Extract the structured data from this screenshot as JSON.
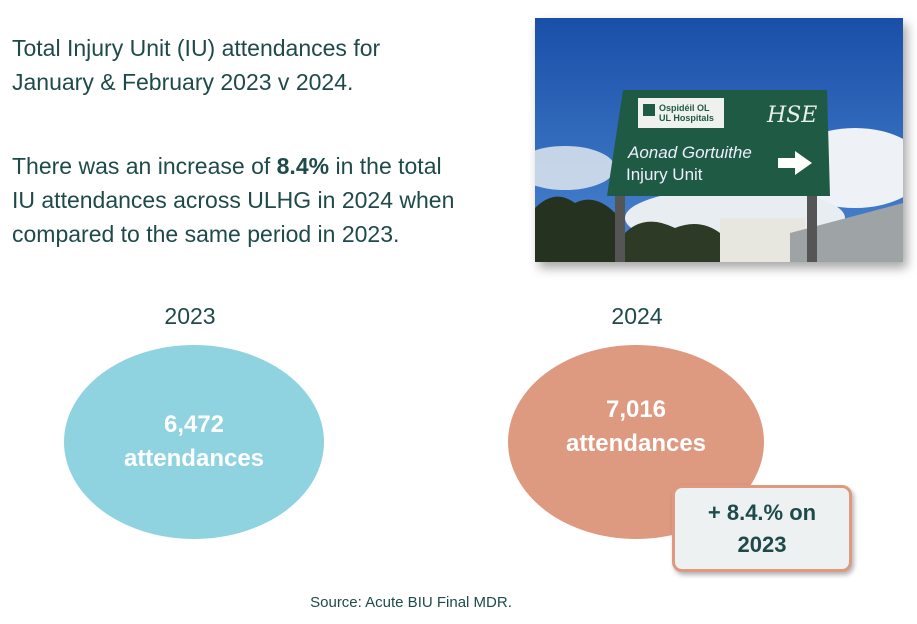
{
  "intro": {
    "line1": "Total Injury Unit (IU) attendances for",
    "line2": "January & February 2023 v 2024."
  },
  "summary": {
    "pre": "There was an increase of ",
    "highlight": "8.4%",
    "post1": " in the total",
    "line2": "IU attendances across ULHG in 2024 when",
    "line3": "compared to the same period in 2023."
  },
  "photo": {
    "logo_text1": "Ospidéil OL",
    "logo_text2": "UL Hospitals",
    "hse": "HSE",
    "sign_irish": "Aonad Gortuithe",
    "sign_english": "Injury Unit"
  },
  "years": [
    {
      "label": "2023",
      "value": "6,472",
      "unit": "attendances",
      "color": "#8ed3df"
    },
    {
      "label": "2024",
      "value": "7,016",
      "unit": "attendances",
      "color": "#dd9a80"
    }
  ],
  "callout": {
    "line1": "+ 8.4.% on",
    "line2": "2023"
  },
  "source": "Source: Acute BIU Final MDR."
}
